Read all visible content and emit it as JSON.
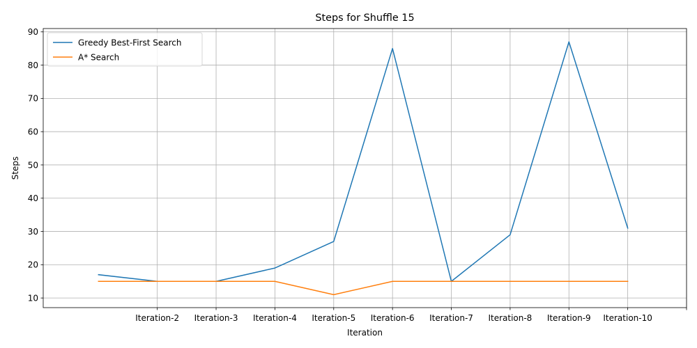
{
  "chart_data": {
    "type": "line",
    "title": "Steps for Shuffle 15",
    "xlabel": "Iteration",
    "ylabel": "Steps",
    "x": [
      1,
      2,
      3,
      4,
      5,
      6,
      7,
      8,
      9,
      10
    ],
    "x_ticks": [
      2,
      3,
      4,
      5,
      6,
      7,
      8,
      9,
      10,
      11
    ],
    "x_tick_labels": [
      "Iteration-2",
      "Iteration-3",
      "Iteration-4",
      "Iteration-5",
      "Iteration-6",
      "Iteration-7",
      "Iteration-8",
      "Iteration-9",
      "Iteration-10",
      ""
    ],
    "xlim": [
      0.06,
      11.0
    ],
    "ylim": [
      7.1,
      91.0
    ],
    "y_ticks": [
      10,
      20,
      30,
      40,
      50,
      60,
      70,
      80,
      90
    ],
    "grid": true,
    "legend_position": "upper left",
    "series": [
      {
        "name": "Greedy Best-First Search",
        "color": "#1f77b4",
        "values": [
          17,
          15,
          15,
          19,
          27,
          85,
          15,
          29,
          87,
          31
        ]
      },
      {
        "name": "A* Search",
        "color": "#ff7f0e",
        "values": [
          15,
          15,
          15,
          15,
          11,
          15,
          15,
          15,
          15,
          15
        ]
      }
    ]
  }
}
